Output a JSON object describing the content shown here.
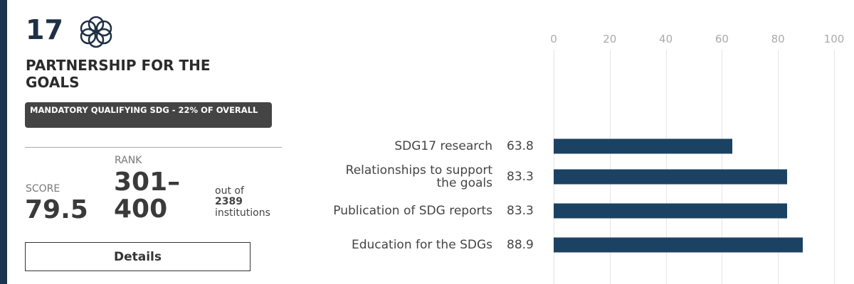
{
  "panel": {
    "number": "17",
    "title": "PARTNERSHIP FOR THE GOALS",
    "badge": "MANDATORY QUALIFYING SDG - 22% OF OVERALL",
    "score_label": "SCORE",
    "score": "79.5",
    "rank_label": "RANK",
    "rank": "301–400",
    "out_of": "out of",
    "total": "2389",
    "institutions": "institutions",
    "button": "Details"
  },
  "chart_data": {
    "type": "bar",
    "orientation": "horizontal",
    "categories": [
      "SDG17 research",
      "Relationships to support the goals",
      "Publication of SDG reports",
      "Education for the SDGs"
    ],
    "values": [
      63.8,
      83.3,
      83.3,
      88.9
    ],
    "color": "#1b4263",
    "xlim": [
      0,
      100
    ],
    "xticks": [
      0,
      20,
      40,
      60,
      80,
      100
    ],
    "grid": true
  }
}
